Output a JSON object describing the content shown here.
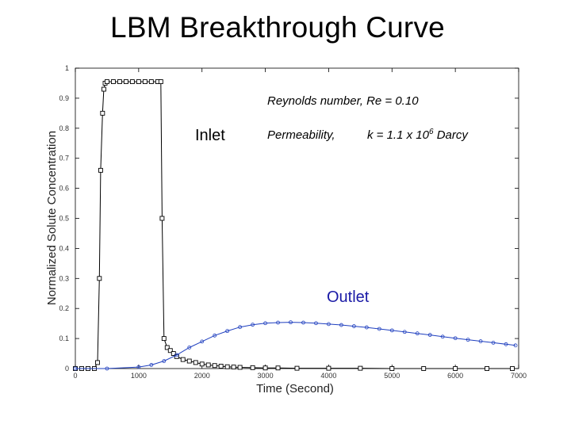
{
  "slide": {
    "title": "LBM Breakthrough Curve"
  },
  "colors": {
    "inlet_series": "#000000",
    "outlet_series": "#1f3fbf",
    "outlet_label": "#1a1aa6",
    "axis": "#000000"
  },
  "chart_data": {
    "type": "line",
    "title": "",
    "xlabel": "Time (Second)",
    "ylabel": "Normalized Solute Concentration",
    "xlim": [
      0,
      7000
    ],
    "ylim": [
      0,
      1
    ],
    "xticks": [
      "0",
      "1000",
      "2000",
      "3000",
      "4000",
      "5000",
      "6000",
      "7000"
    ],
    "yticks": [
      "0",
      "0.1",
      "0.2",
      "0.3",
      "0.4",
      "0.5",
      "0.6",
      "0.7",
      "0.8",
      "0.9",
      "1"
    ],
    "grid": false,
    "annotations": {
      "reynolds": "Reynolds number, Re = 0.10",
      "permeability_prefix": "Permeability,",
      "permeability_value": "k = 1.1 x 10",
      "permeability_exp": "6",
      "permeability_unit": " Darcy",
      "inlet_label": "Inlet",
      "outlet_label": "Outlet"
    },
    "series": [
      {
        "name": "Inlet",
        "marker": "square",
        "x": [
          0,
          100,
          200,
          300,
          350,
          380,
          400,
          430,
          450,
          470,
          500,
          600,
          700,
          800,
          900,
          1000,
          1100,
          1200,
          1300,
          1350,
          1370,
          1400,
          1450,
          1500,
          1550,
          1600,
          1700,
          1800,
          1900,
          2000,
          2100,
          2200,
          2300,
          2400,
          2500,
          2600,
          2800,
          3000,
          3200,
          3500,
          4000,
          4500,
          5000,
          5500,
          6000,
          6500,
          6900
        ],
        "y": [
          0,
          0,
          0,
          0,
          0.02,
          0.3,
          0.66,
          0.85,
          0.93,
          0.95,
          0.955,
          0.955,
          0.955,
          0.955,
          0.955,
          0.955,
          0.955,
          0.955,
          0.955,
          0.955,
          0.5,
          0.1,
          0.07,
          0.06,
          0.05,
          0.04,
          0.03,
          0.025,
          0.02,
          0.015,
          0.012,
          0.01,
          0.008,
          0.006,
          0.005,
          0.004,
          0.003,
          0.002,
          0.002,
          0.001,
          0.001,
          0.001,
          0,
          0,
          0,
          0,
          0
        ]
      },
      {
        "name": "Outlet",
        "marker": "circle",
        "x": [
          0,
          500,
          1000,
          1200,
          1400,
          1600,
          1800,
          2000,
          2200,
          2400,
          2600,
          2800,
          3000,
          3200,
          3400,
          3600,
          3800,
          4000,
          4200,
          4400,
          4600,
          4800,
          5000,
          5200,
          5400,
          5600,
          5800,
          6000,
          6200,
          6400,
          6600,
          6800,
          6950
        ],
        "y": [
          0,
          0,
          0.005,
          0.012,
          0.025,
          0.045,
          0.07,
          0.09,
          0.11,
          0.125,
          0.138,
          0.146,
          0.151,
          0.153,
          0.154,
          0.153,
          0.151,
          0.148,
          0.145,
          0.141,
          0.137,
          0.132,
          0.127,
          0.122,
          0.117,
          0.112,
          0.106,
          0.101,
          0.096,
          0.091,
          0.086,
          0.081,
          0.077
        ]
      }
    ]
  }
}
